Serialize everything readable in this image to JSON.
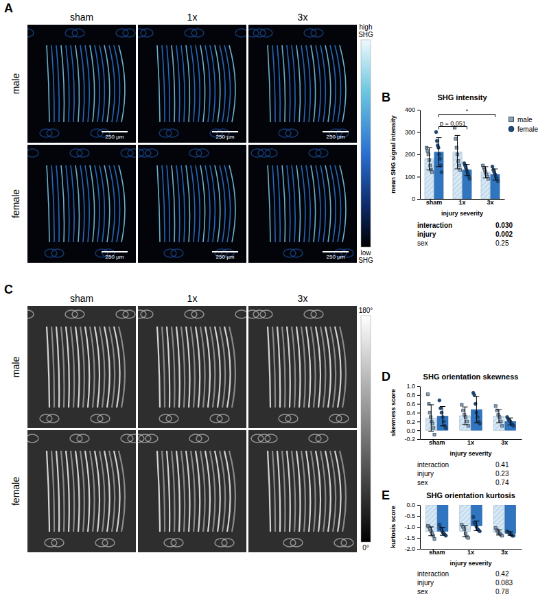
{
  "image_panels": [
    {
      "label": "A",
      "columns": [
        "sham",
        "1x",
        "3x"
      ],
      "rows": [
        "male",
        "female"
      ],
      "scale_bar": "250 µm",
      "colorbar": {
        "high": "high SHG",
        "low": "low SHG"
      }
    },
    {
      "label": "C",
      "columns": [
        "sham",
        "1x",
        "3x"
      ],
      "rows": [
        "male",
        "female"
      ],
      "colorbar": {
        "high": "180°",
        "low": "0°"
      }
    }
  ],
  "chart_data": [
    {
      "type": "bar",
      "panel": "B",
      "title": "SHG intensity",
      "y_label": "mean SHG signal intensity",
      "x_label": "injury severity",
      "categories": [
        "sham",
        "1x",
        "3x"
      ],
      "series": [
        {
          "name": "male",
          "color": "#c6ddf0",
          "marker": "square",
          "values": [
            180,
            210,
            120
          ],
          "errors": [
            50,
            75,
            25
          ],
          "points": [
            [
              230,
              215,
              200,
              175,
              150,
              130,
              120
            ],
            [
              320,
              270,
              230,
              200,
              170,
              150,
              130
            ],
            [
              150,
              140,
              130,
              120,
              110,
              100,
              90
            ]
          ]
        },
        {
          "name": "female",
          "color": "#2f75c0",
          "marker": "circle",
          "values": [
            210,
            130,
            110
          ],
          "errors": [
            65,
            25,
            25
          ],
          "points": [
            [
              300,
              260,
              240,
              230,
              200,
              180,
              150,
              120
            ],
            [
              160,
              150,
              140,
              130,
              120,
              110,
              100,
              90
            ],
            [
              145,
              130,
              120,
              110,
              100,
              90,
              80
            ]
          ]
        }
      ],
      "ylim": [
        0,
        400
      ],
      "yticks": [
        0,
        100,
        200,
        300,
        400
      ],
      "legend": "right",
      "annotations": [
        {
          "text": "p = 0.051",
          "between": [
            [
              0,
              1
            ],
            [
              1,
              1
            ]
          ]
        },
        {
          "text": "*",
          "between": [
            [
              0,
              1
            ],
            [
              2,
              1
            ]
          ]
        }
      ],
      "stats": [
        {
          "name": "interaction",
          "p": "0.030",
          "significant": true
        },
        {
          "name": "injury",
          "p": "0.002",
          "significant": true
        },
        {
          "name": "sex",
          "p": "0.25",
          "significant": false
        }
      ]
    },
    {
      "type": "bar",
      "panel": "D",
      "title": "SHG orientation skewness",
      "y_label": "skewness score",
      "x_label": "injury severity",
      "categories": [
        "sham",
        "1x",
        "3x"
      ],
      "series": [
        {
          "name": "male",
          "color": "#c6ddf0",
          "marker": "square",
          "values": [
            0.28,
            0.33,
            0.32
          ],
          "errors": [
            0.3,
            0.2,
            0.15
          ],
          "points": [
            [
              0.82,
              0.6,
              0.4,
              0.3,
              0.2,
              0.15,
              0.05,
              -0.1
            ],
            [
              0.58,
              0.45,
              0.35,
              0.3,
              0.2,
              0.1
            ],
            [
              0.55,
              0.45,
              0.35,
              0.3,
              0.2,
              0.1
            ]
          ]
        },
        {
          "name": "female",
          "color": "#2f75c0",
          "marker": "circle",
          "values": [
            0.32,
            0.47,
            0.2
          ],
          "errors": [
            0.22,
            0.3,
            0.08
          ],
          "points": [
            [
              0.68,
              0.5,
              0.4,
              0.3,
              0.2,
              0.1,
              0.05
            ],
            [
              0.85,
              0.8,
              0.6,
              0.4,
              0.3,
              0.2,
              0.15
            ],
            [
              0.3,
              0.25,
              0.22,
              0.2,
              0.15,
              0.12,
              0.1
            ]
          ]
        }
      ],
      "ylim": [
        -0.2,
        1.0
      ],
      "yticks": [
        {
          "value": -0.2,
          "label": "-0.2"
        },
        {
          "value": 0,
          "label": "0.0"
        },
        {
          "value": 0.2,
          "label": "0.2"
        },
        {
          "value": 0.4,
          "label": "0.4"
        },
        {
          "value": 0.6,
          "label": "0.6"
        },
        {
          "value": 0.8,
          "label": "0.8"
        },
        {
          "value": 1.0,
          "label": "1.0"
        }
      ],
      "stats": [
        {
          "name": "interaction",
          "p": "0.41",
          "significant": false
        },
        {
          "name": "injury",
          "p": "0.23",
          "significant": false
        },
        {
          "name": "sex",
          "p": "0.74",
          "significant": false
        }
      ]
    },
    {
      "type": "bar",
      "panel": "E",
      "title": "SHG orientation kurtosis",
      "y_label": "kurtosis score",
      "x_label": "injury severity",
      "categories": [
        "sham",
        "1x",
        "3x"
      ],
      "series": [
        {
          "name": "male",
          "color": "#c6ddf0",
          "marker": "square",
          "values": [
            -1.2,
            -1.2,
            -1.25
          ],
          "errors": [
            0.2,
            0.25,
            0.12
          ],
          "points": [
            [
              -0.95,
              -1.0,
              -1.1,
              -1.2,
              -1.3,
              -1.4,
              -1.55
            ],
            [
              -0.9,
              -1.0,
              -1.1,
              -1.3,
              -1.45,
              -1.5
            ],
            [
              -1.05,
              -1.15,
              -1.25,
              -1.3,
              -1.35,
              -1.4
            ]
          ]
        },
        {
          "name": "female",
          "color": "#2f75c0",
          "marker": "circle",
          "values": [
            -1.2,
            -0.95,
            -1.3
          ],
          "errors": [
            0.18,
            0.22,
            0.08
          ],
          "points": [
            [
              -0.9,
              -1.05,
              -1.15,
              -1.25,
              -1.3,
              -1.35,
              -1.4
            ],
            [
              -0.55,
              -0.8,
              -0.9,
              -1.0,
              -1.1,
              -1.15,
              -1.2
            ],
            [
              -1.2,
              -1.25,
              -1.3,
              -1.35,
              -1.4,
              -1.4
            ]
          ]
        }
      ],
      "ylim": [
        -2.0,
        0.0
      ],
      "yticks": [
        {
          "value": -2.0,
          "label": "-2.0"
        },
        {
          "value": -1.5,
          "label": "-1.5"
        },
        {
          "value": -1.0,
          "label": "-1.0"
        },
        {
          "value": -0.5,
          "label": "-0.5"
        },
        {
          "value": 0,
          "label": "0.0"
        }
      ],
      "stats": [
        {
          "name": "interaction",
          "p": "0.42",
          "significant": false
        },
        {
          "name": "injury",
          "p": "0.083",
          "significant": false
        },
        {
          "name": "sex",
          "p": "0.78",
          "significant": false
        }
      ]
    }
  ]
}
